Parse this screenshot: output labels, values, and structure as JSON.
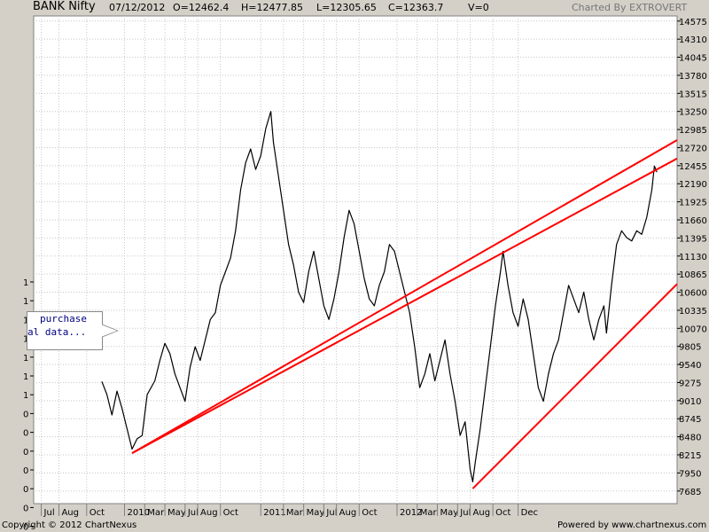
{
  "header": {
    "symbol": "BANK Nifty",
    "date": "07/12/2012",
    "open": "O=12462.4",
    "high": "H=12477.85",
    "low": "L=12305.65",
    "close": "C=12363.7",
    "volume": "V=0",
    "charted_by": "Charted By EXTROVERT"
  },
  "footer": {
    "copyright": "Copyright © 2012 ChartNexus",
    "powered": "Powered by www.chartnexus.com"
  },
  "note": {
    "line1": "purchase",
    "line2": "al data..."
  },
  "colors": {
    "price": "#000000",
    "trendline": "#ff0000",
    "grid": "#c8c8c8",
    "plot_bg": "#ffffff",
    "frame_bg": "#d4d0c8"
  },
  "chart_data": {
    "type": "line",
    "ylim": [
      7500,
      14650
    ],
    "y_ticks": [
      "14575",
      "14310",
      "14045",
      "13780",
      "13515",
      "13250",
      "12985",
      "12720",
      "12455",
      "12190",
      "11925",
      "11660",
      "11395",
      "11130",
      "10865",
      "10600",
      "10335",
      "10070",
      "9805",
      "9540",
      "9275",
      "9010",
      "8745",
      "8480",
      "8215",
      "7950",
      "7685"
    ],
    "left_ticks": [
      "1",
      "1",
      "1",
      "1",
      "1",
      "1",
      "1",
      "0",
      "0",
      "0",
      "0",
      "0",
      "0",
      "0"
    ],
    "x_ticks": [
      "Jul",
      "Aug",
      "Oct",
      "2010",
      "Mar",
      "May",
      "Jul",
      "Aug",
      "Oct",
      "2011",
      "Mar",
      "May",
      "Jul",
      "Aug",
      "Oct",
      "2012",
      "Mar",
      "May",
      "Jul",
      "Aug",
      "Oct",
      "Dec"
    ],
    "x_tick_pos": [
      0.03,
      0.1,
      0.21,
      0.36,
      0.44,
      0.52,
      0.6,
      0.65,
      0.74,
      0.9,
      0.99,
      1.07,
      1.15,
      1.2,
      1.29,
      1.44,
      1.52,
      1.6,
      1.68,
      1.73,
      1.82,
      1.92
    ],
    "price_path": [
      [
        0.27,
        9290
      ],
      [
        0.29,
        9100
      ],
      [
        0.31,
        8800
      ],
      [
        0.33,
        9150
      ],
      [
        0.35,
        8900
      ],
      [
        0.37,
        8600
      ],
      [
        0.39,
        8300
      ],
      [
        0.41,
        8450
      ],
      [
        0.43,
        8500
      ],
      [
        0.45,
        9100
      ],
      [
        0.48,
        9300
      ],
      [
        0.5,
        9600
      ],
      [
        0.52,
        9850
      ],
      [
        0.54,
        9700
      ],
      [
        0.56,
        9400
      ],
      [
        0.58,
        9200
      ],
      [
        0.6,
        9000
      ],
      [
        0.62,
        9500
      ],
      [
        0.64,
        9800
      ],
      [
        0.66,
        9600
      ],
      [
        0.68,
        9900
      ],
      [
        0.7,
        10200
      ],
      [
        0.72,
        10300
      ],
      [
        0.74,
        10700
      ],
      [
        0.76,
        10900
      ],
      [
        0.78,
        11100
      ],
      [
        0.8,
        11500
      ],
      [
        0.82,
        12100
      ],
      [
        0.84,
        12500
      ],
      [
        0.86,
        12700
      ],
      [
        0.88,
        12400
      ],
      [
        0.9,
        12600
      ],
      [
        0.92,
        13000
      ],
      [
        0.94,
        13250
      ],
      [
        0.95,
        12800
      ],
      [
        0.97,
        12300
      ],
      [
        0.99,
        11800
      ],
      [
        1.01,
        11300
      ],
      [
        1.03,
        11000
      ],
      [
        1.05,
        10600
      ],
      [
        1.07,
        10450
      ],
      [
        1.09,
        10900
      ],
      [
        1.11,
        11200
      ],
      [
        1.13,
        10800
      ],
      [
        1.15,
        10400
      ],
      [
        1.17,
        10200
      ],
      [
        1.19,
        10500
      ],
      [
        1.21,
        10900
      ],
      [
        1.23,
        11400
      ],
      [
        1.25,
        11800
      ],
      [
        1.27,
        11600
      ],
      [
        1.29,
        11200
      ],
      [
        1.31,
        10800
      ],
      [
        1.33,
        10500
      ],
      [
        1.35,
        10400
      ],
      [
        1.37,
        10700
      ],
      [
        1.39,
        10900
      ],
      [
        1.41,
        11300
      ],
      [
        1.43,
        11200
      ],
      [
        1.45,
        10900
      ],
      [
        1.47,
        10600
      ],
      [
        1.49,
        10300
      ],
      [
        1.51,
        9800
      ],
      [
        1.53,
        9200
      ],
      [
        1.55,
        9400
      ],
      [
        1.57,
        9700
      ],
      [
        1.59,
        9300
      ],
      [
        1.61,
        9600
      ],
      [
        1.63,
        9900
      ],
      [
        1.65,
        9400
      ],
      [
        1.67,
        9000
      ],
      [
        1.69,
        8500
      ],
      [
        1.71,
        8700
      ],
      [
        1.73,
        8000
      ],
      [
        1.74,
        7820
      ],
      [
        1.75,
        8100
      ],
      [
        1.77,
        8600
      ],
      [
        1.79,
        9200
      ],
      [
        1.81,
        9800
      ],
      [
        1.83,
        10400
      ],
      [
        1.85,
        10900
      ],
      [
        1.86,
        11200
      ],
      [
        1.88,
        10700
      ],
      [
        1.9,
        10300
      ],
      [
        1.92,
        10100
      ],
      [
        1.94,
        10500
      ],
      [
        1.96,
        10200
      ],
      [
        1.98,
        9700
      ],
      [
        2.0,
        9200
      ],
      [
        2.02,
        9000
      ],
      [
        2.04,
        9400
      ],
      [
        2.06,
        9700
      ],
      [
        2.08,
        9900
      ],
      [
        2.1,
        10300
      ],
      [
        2.12,
        10700
      ],
      [
        2.14,
        10500
      ],
      [
        2.16,
        10300
      ],
      [
        2.18,
        10600
      ],
      [
        2.2,
        10200
      ],
      [
        2.22,
        9900
      ],
      [
        2.24,
        10200
      ],
      [
        2.26,
        10400
      ],
      [
        2.27,
        10000
      ],
      [
        2.29,
        10700
      ],
      [
        2.31,
        11300
      ],
      [
        2.33,
        11500
      ],
      [
        2.35,
        11400
      ],
      [
        2.37,
        11350
      ],
      [
        2.39,
        11500
      ],
      [
        2.41,
        11450
      ],
      [
        2.43,
        11700
      ],
      [
        2.45,
        12100
      ],
      [
        2.46,
        12450
      ],
      [
        2.47,
        12360
      ]
    ],
    "trendlines": [
      [
        [
          0.39,
          8240
        ],
        [
          2.55,
          12560
        ]
      ],
      [
        [
          0.39,
          8240
        ],
        [
          2.55,
          12830
        ]
      ],
      [
        [
          1.74,
          7720
        ],
        [
          2.55,
          10720
        ]
      ]
    ]
  }
}
